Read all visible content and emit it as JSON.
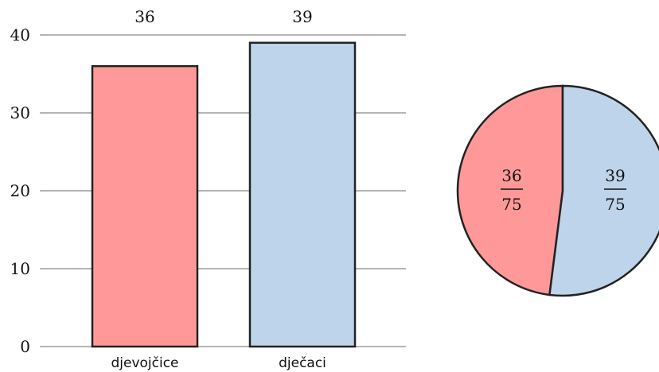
{
  "chart_data": [
    {
      "type": "bar",
      "categories": [
        "djevojčice",
        "dječaci"
      ],
      "values": [
        36,
        39
      ],
      "value_labels": [
        "36",
        "39"
      ],
      "colors": [
        "#ff9999",
        "#bdd4ea"
      ],
      "ylim": [
        0,
        40
      ],
      "yticks": [
        0,
        10,
        20,
        30,
        40
      ],
      "ytick_labels": [
        "0",
        "10",
        "20",
        "30",
        "40"
      ],
      "grid": true
    },
    {
      "type": "pie",
      "values": [
        36,
        39
      ],
      "total": 75,
      "labels": [
        {
          "numerator": "36",
          "denominator": "75"
        },
        {
          "numerator": "39",
          "denominator": "75"
        }
      ],
      "colors": [
        "#ff9999",
        "#bdd4ea"
      ]
    }
  ]
}
